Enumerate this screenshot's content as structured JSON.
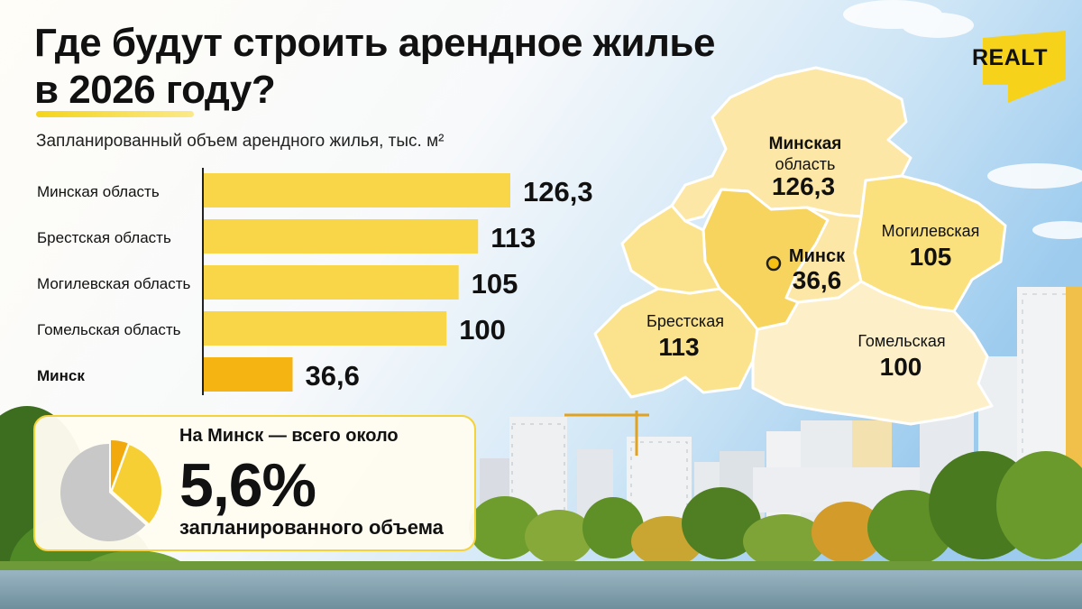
{
  "header": {
    "title_line1": "Где будут строить арендное жилье",
    "title_line2": "в 2026 году?",
    "subtitle": "Запланированный объем арендного жилья, тыс. м²"
  },
  "brand": {
    "logo_text": "REALT",
    "accent": "#f7d21b"
  },
  "chart_data": {
    "type": "bar",
    "orientation": "horizontal",
    "categories": [
      "Минская область",
      "Брестская область",
      "Могилевская область",
      "Гомельская область",
      "Минск"
    ],
    "values": [
      126.3,
      113,
      105,
      100,
      36.6
    ],
    "value_labels": [
      "126,3",
      "113",
      "105",
      "100",
      "36,6"
    ],
    "highlight": "Минск",
    "colors": {
      "bar": "#f8d648",
      "highlight_bar": "#f6b413",
      "axis": "#222222"
    }
  },
  "callout": {
    "lead": "На Минск — всего около",
    "value": "5,6%",
    "tail": "запланированного объема",
    "share_percent": 5.6,
    "colors": {
      "rest": "#c8c8c8",
      "regions": "#f6cf34",
      "minsk": "#f2a90e"
    }
  },
  "map": {
    "regions": [
      {
        "id": "minskaya",
        "name_line1": "Минская",
        "name_line2": "область",
        "value": "126,3",
        "color": "#fce7a6"
      },
      {
        "id": "minsk",
        "name_line1": "Минск",
        "name_line2": "",
        "value": "36,6",
        "color": "#f7d45e"
      },
      {
        "id": "mogilev",
        "name_line1": "Могилевская",
        "name_line2": "",
        "value": "105",
        "color": "#fbe17e"
      },
      {
        "id": "brest",
        "name_line1": "Брестская",
        "name_line2": "",
        "value": "113",
        "color": "#fbe38d"
      },
      {
        "id": "gomel",
        "name_line1": "Гомельская",
        "name_line2": "",
        "value": "100",
        "color": "#fdf0c8"
      }
    ]
  }
}
